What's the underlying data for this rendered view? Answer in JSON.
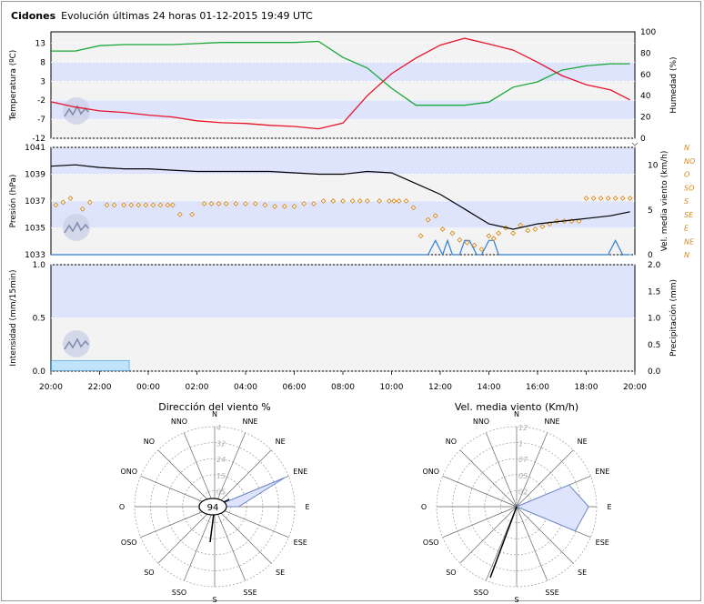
{
  "header": {
    "station": "Cidones",
    "subtitle": "Evolución últimas 24 horas 01-12-2015 19:49 UTC"
  },
  "colors": {
    "temperature": "#e8142a",
    "humidity": "#19a83a",
    "pressure": "#000000",
    "wind_dir_marker": "#d68a1e",
    "wind_speed": "#2f7fd6",
    "band": "#dde4fb",
    "panel_bg": "#f3f3f3",
    "rain": "#bfe3f8"
  },
  "chart_data": [
    {
      "type": "line",
      "name": "temp_humidity",
      "x_labels": [
        "20:00",
        "22:00",
        "00:00",
        "02:00",
        "04:00",
        "06:00",
        "08:00",
        "10:00",
        "12:00",
        "14:00",
        "16:00",
        "18:00",
        "20:00"
      ],
      "x_hours": [
        0,
        1,
        2,
        3,
        4,
        5,
        6,
        7,
        8,
        9,
        10,
        11,
        12,
        13,
        14,
        15,
        16,
        17,
        18,
        19,
        20,
        21,
        22,
        23,
        23.8
      ],
      "ylabel_left": "Temperatura (ºC)",
      "ylabel_right": "Humedad (%)",
      "ylim_left": [
        -12,
        16
      ],
      "yticks_left": [
        13,
        8,
        3,
        -2,
        -7,
        -12
      ],
      "ylim_right": [
        0,
        100
      ],
      "yticks_right": [
        100,
        80,
        60,
        40,
        20,
        0
      ],
      "series": [
        {
          "name": "Temperatura",
          "axis": "left",
          "values": [
            -2.4,
            -3.8,
            -4.8,
            -5.2,
            -5.9,
            -6.4,
            -7.4,
            -7.9,
            -8.1,
            -8.6,
            -8.9,
            -9.5,
            -8.0,
            -0.8,
            5.0,
            9.1,
            12.5,
            14.3,
            12.8,
            11.2,
            8.0,
            4.5,
            2.1,
            0.7,
            -1.9
          ]
        },
        {
          "name": "Humedad",
          "axis": "right",
          "values": [
            82,
            82,
            87,
            88,
            88,
            88,
            89,
            90,
            90,
            90,
            90,
            91,
            76,
            66,
            47,
            31,
            31,
            31,
            34,
            48,
            53,
            64,
            68,
            70,
            70
          ]
        }
      ]
    },
    {
      "type": "line",
      "name": "pressure_wind",
      "ylabel_left": "Presión (hPa)",
      "ylabel_right": "Vel. media viento (km/h)",
      "ylim_left": [
        1033,
        1041
      ],
      "yticks_left": [
        1041,
        1039,
        1037,
        1035,
        1033
      ],
      "ylim_right": [
        0,
        12
      ],
      "yticks_right": [
        10,
        5,
        0
      ],
      "direction_labels": [
        "N",
        "NO",
        "O",
        "SO",
        "S",
        "SE",
        "E",
        "NE",
        "N"
      ],
      "series": [
        {
          "name": "Presión",
          "axis": "left",
          "x_hours": [
            0,
            1,
            2,
            3,
            4,
            5,
            6,
            7,
            8,
            9,
            10,
            11,
            12,
            13,
            14,
            15,
            16,
            17,
            18,
            19,
            20,
            21,
            22,
            23,
            23.8
          ],
          "values": [
            1039.6,
            1039.7,
            1039.5,
            1039.4,
            1039.4,
            1039.3,
            1039.2,
            1039.2,
            1039.2,
            1039.2,
            1039.1,
            1039.0,
            1039.0,
            1039.2,
            1039.1,
            1038.3,
            1037.5,
            1036.4,
            1035.3,
            1034.9,
            1035.3,
            1035.5,
            1035.7,
            1035.9,
            1036.2
          ]
        },
        {
          "name": "Dirección viento",
          "axis": "direction",
          "x_hours": [
            0.2,
            0.5,
            0.8,
            1.3,
            1.6,
            2.3,
            2.6,
            3.0,
            3.3,
            3.6,
            3.9,
            4.2,
            4.5,
            4.8,
            5.0,
            5.3,
            5.8,
            6.3,
            6.6,
            6.9,
            7.2,
            7.6,
            8.0,
            8.4,
            8.8,
            9.2,
            9.6,
            10.0,
            10.4,
            10.8,
            11.2,
            11.6,
            12.0,
            12.4,
            12.7,
            13.0,
            13.5,
            13.9,
            14.1,
            14.3,
            14.6,
            14.9,
            15.2,
            15.5,
            15.8,
            16.1,
            16.5,
            16.8,
            17.1,
            17.4,
            17.7,
            18.0,
            18.2,
            18.4,
            18.7,
            19.0,
            19.3,
            19.6,
            19.9,
            20.2,
            20.5,
            20.8,
            21.1,
            21.4,
            21.7,
            22.0,
            22.3,
            22.6,
            22.9,
            23.2,
            23.5,
            23.8
          ],
          "values": [
            3.7,
            3.9,
            4.2,
            3.4,
            3.9,
            3.7,
            3.7,
            3.7,
            3.7,
            3.7,
            3.7,
            3.7,
            3.7,
            3.7,
            3.7,
            3.0,
            3.0,
            3.8,
            3.8,
            3.8,
            3.8,
            3.8,
            3.8,
            3.8,
            3.7,
            3.6,
            3.6,
            3.6,
            3.8,
            3.8,
            4.0,
            4.0,
            4.0,
            4.0,
            4.0,
            4.0,
            4.0,
            4.0,
            4.0,
            4.0,
            4.0,
            3.5,
            1.4,
            2.6,
            2.9,
            1.9,
            1.6,
            1.1,
            0.9,
            0.7,
            0.4,
            1.4,
            1.2,
            1.6,
            2.0,
            1.6,
            2.2,
            1.8,
            1.9,
            2.1,
            2.3,
            2.5,
            2.5,
            2.5,
            2.5,
            4.2,
            4.2,
            4.2,
            4.2,
            4.2,
            4.2,
            4.2
          ]
        },
        {
          "name": "Vel. media viento",
          "axis": "right",
          "x_hours": [
            0,
            15.5,
            15.8,
            16.1,
            16.3,
            16.5,
            16.8,
            17.0,
            17.2,
            17.5,
            17.7,
            18.0,
            18.2,
            18.4,
            18.7,
            18.9,
            22.9,
            23.2,
            23.5,
            23.8
          ],
          "values": [
            0,
            0,
            1.6,
            0,
            1.6,
            0,
            0,
            1.6,
            1.6,
            0,
            0,
            1.6,
            1.6,
            0,
            0,
            0,
            0,
            1.6,
            0,
            0
          ]
        }
      ]
    },
    {
      "type": "area",
      "name": "precipitation",
      "ylabel_left": "Intensidad (mm/15min)",
      "ylabel_right": "Precipitación (mm)",
      "ylim_left": [
        0,
        1.0
      ],
      "yticks_left": [
        1.0,
        0.5,
        0.0
      ],
      "ylim_right": [
        0,
        2.0
      ],
      "yticks_right": [
        2.0,
        1.5,
        1.0,
        0.5,
        0.0
      ],
      "series": [
        {
          "name": "Precipitación",
          "x_hours": [
            0,
            3.2
          ],
          "values": [
            0.1,
            0.1
          ]
        }
      ]
    },
    {
      "type": "radar",
      "name": "wind_dir_rose",
      "title": "Dirección del viento %",
      "directions": [
        "N",
        "NNE",
        "NE",
        "ENE",
        "E",
        "ESE",
        "SE",
        "SSE",
        "S",
        "SSO",
        "SO",
        "OSO",
        "O",
        "ONO",
        "NO",
        "NNO"
      ],
      "ring_labels": [
        "05",
        "15",
        "24",
        "32",
        "4"
      ],
      "ring_max": 40,
      "calm_label": "94",
      "values": [
        0,
        0,
        0,
        38,
        12,
        0,
        0,
        0,
        0,
        0,
        0,
        0,
        0,
        0,
        0,
        0
      ]
    },
    {
      "type": "radar",
      "name": "wind_speed_rose",
      "title": "Vel. media viento (Km/h)",
      "directions": [
        "N",
        "NNE",
        "NE",
        "ENE",
        "E",
        "ESE",
        "SE",
        "SSE",
        "S",
        "SSO",
        "SO",
        "OSO",
        "O",
        "ONO",
        "NO",
        "NNO"
      ],
      "ring_labels": [
        "02",
        "05",
        "07",
        "1",
        "12"
      ],
      "ring_max": 12,
      "values": [
        0,
        0,
        0,
        8.5,
        10.8,
        9.5,
        0,
        0,
        0,
        0,
        0,
        0,
        0,
        0,
        0,
        0
      ]
    }
  ]
}
